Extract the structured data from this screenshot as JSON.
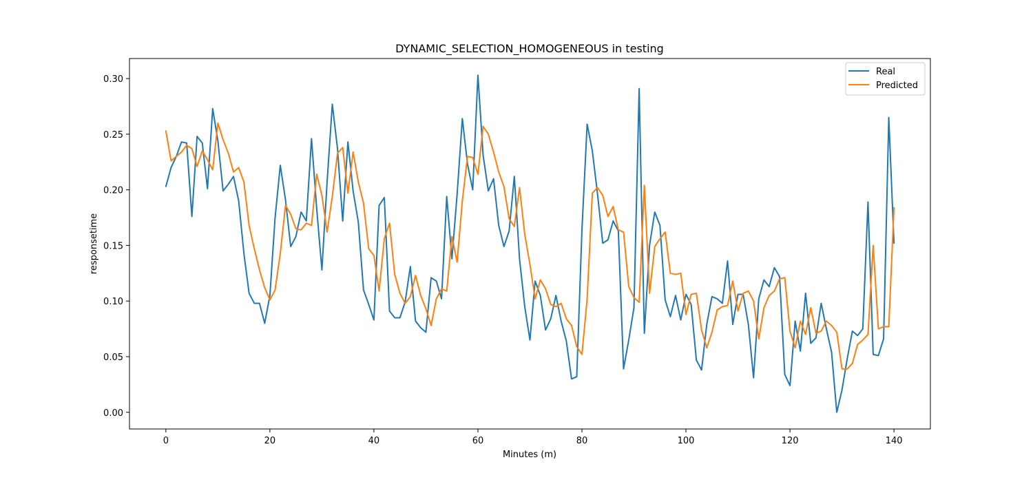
{
  "chart_data": {
    "type": "line",
    "title": "DYNAMIC_SELECTION_HOMOGENEOUS in testing",
    "xlabel": "Minutes (m)",
    "ylabel": "responsetime",
    "xlim": [
      -7,
      147
    ],
    "ylim": [
      -0.015,
      0.318
    ],
    "xticks": [
      0,
      20,
      40,
      60,
      80,
      100,
      120,
      140
    ],
    "yticks": [
      0.0,
      0.05,
      0.1,
      0.15,
      0.2,
      0.25,
      0.3
    ],
    "xtick_labels": [
      "0",
      "20",
      "40",
      "60",
      "80",
      "100",
      "120",
      "140"
    ],
    "ytick_labels": [
      "0.00",
      "0.05",
      "0.10",
      "0.15",
      "0.20",
      "0.25",
      "0.30"
    ],
    "legend_position": "top-right",
    "series": [
      {
        "name": "Real",
        "color": "#1f77b4",
        "values": [
          0.203,
          0.22,
          0.23,
          0.243,
          0.242,
          0.176,
          0.248,
          0.242,
          0.201,
          0.273,
          0.244,
          0.199,
          0.205,
          0.212,
          0.19,
          0.143,
          0.107,
          0.098,
          0.098,
          0.08,
          0.105,
          0.175,
          0.222,
          0.191,
          0.149,
          0.158,
          0.18,
          0.172,
          0.246,
          0.183,
          0.128,
          0.207,
          0.277,
          0.237,
          0.172,
          0.243,
          0.199,
          0.171,
          0.11,
          0.097,
          0.083,
          0.186,
          0.193,
          0.091,
          0.085,
          0.085,
          0.099,
          0.131,
          0.082,
          0.076,
          0.072,
          0.121,
          0.118,
          0.102,
          0.194,
          0.138,
          0.196,
          0.264,
          0.223,
          0.2,
          0.303,
          0.231,
          0.199,
          0.21,
          0.168,
          0.149,
          0.163,
          0.212,
          0.138,
          0.095,
          0.065,
          0.118,
          0.105,
          0.074,
          0.084,
          0.105,
          0.082,
          0.064,
          0.03,
          0.032,
          0.164,
          0.259,
          0.235,
          0.196,
          0.152,
          0.155,
          0.172,
          0.163,
          0.039,
          0.065,
          0.094,
          0.291,
          0.071,
          0.15,
          0.18,
          0.168,
          0.101,
          0.086,
          0.105,
          0.083,
          0.106,
          0.097,
          0.047,
          0.038,
          0.079,
          0.104,
          0.102,
          0.098,
          0.136,
          0.079,
          0.106,
          0.106,
          0.079,
          0.031,
          0.102,
          0.119,
          0.113,
          0.13,
          0.122,
          0.034,
          0.024,
          0.082,
          0.055,
          0.107,
          0.062,
          0.067,
          0.098,
          0.075,
          0.054,
          0.0,
          0.02,
          0.048,
          0.073,
          0.069,
          0.075,
          0.189,
          0.052,
          0.051,
          0.066,
          0.265,
          0.152
        ]
      },
      {
        "name": "Predicted",
        "color": "#ff7f0e",
        "values": [
          0.253,
          0.226,
          0.23,
          0.234,
          0.24,
          0.237,
          0.221,
          0.235,
          0.227,
          0.218,
          0.26,
          0.245,
          0.233,
          0.216,
          0.22,
          0.207,
          0.168,
          0.147,
          0.128,
          0.112,
          0.101,
          0.11,
          0.143,
          0.186,
          0.178,
          0.165,
          0.164,
          0.17,
          0.168,
          0.214,
          0.195,
          0.162,
          0.194,
          0.233,
          0.238,
          0.197,
          0.234,
          0.207,
          0.188,
          0.147,
          0.141,
          0.109,
          0.156,
          0.17,
          0.124,
          0.107,
          0.098,
          0.104,
          0.123,
          0.105,
          0.093,
          0.078,
          0.102,
          0.111,
          0.109,
          0.158,
          0.135,
          0.19,
          0.23,
          0.229,
          0.214,
          0.257,
          0.25,
          0.234,
          0.216,
          0.203,
          0.174,
          0.167,
          0.202,
          0.16,
          0.133,
          0.102,
          0.119,
          0.111,
          0.097,
          0.095,
          0.098,
          0.084,
          0.078,
          0.059,
          0.052,
          0.102,
          0.197,
          0.202,
          0.195,
          0.176,
          0.185,
          0.164,
          0.162,
          0.113,
          0.103,
          0.099,
          0.204,
          0.107,
          0.149,
          0.156,
          0.162,
          0.125,
          0.124,
          0.125,
          0.088,
          0.106,
          0.107,
          0.074,
          0.058,
          0.072,
          0.092,
          0.095,
          0.096,
          0.118,
          0.091,
          0.107,
          0.109,
          0.1,
          0.066,
          0.094,
          0.105,
          0.109,
          0.12,
          0.121,
          0.073,
          0.058,
          0.082,
          0.07,
          0.094,
          0.071,
          0.073,
          0.082,
          0.078,
          0.072,
          0.039,
          0.039,
          0.044,
          0.061,
          0.065,
          0.07,
          0.15,
          0.075,
          0.077,
          0.077,
          0.184
        ]
      }
    ]
  }
}
